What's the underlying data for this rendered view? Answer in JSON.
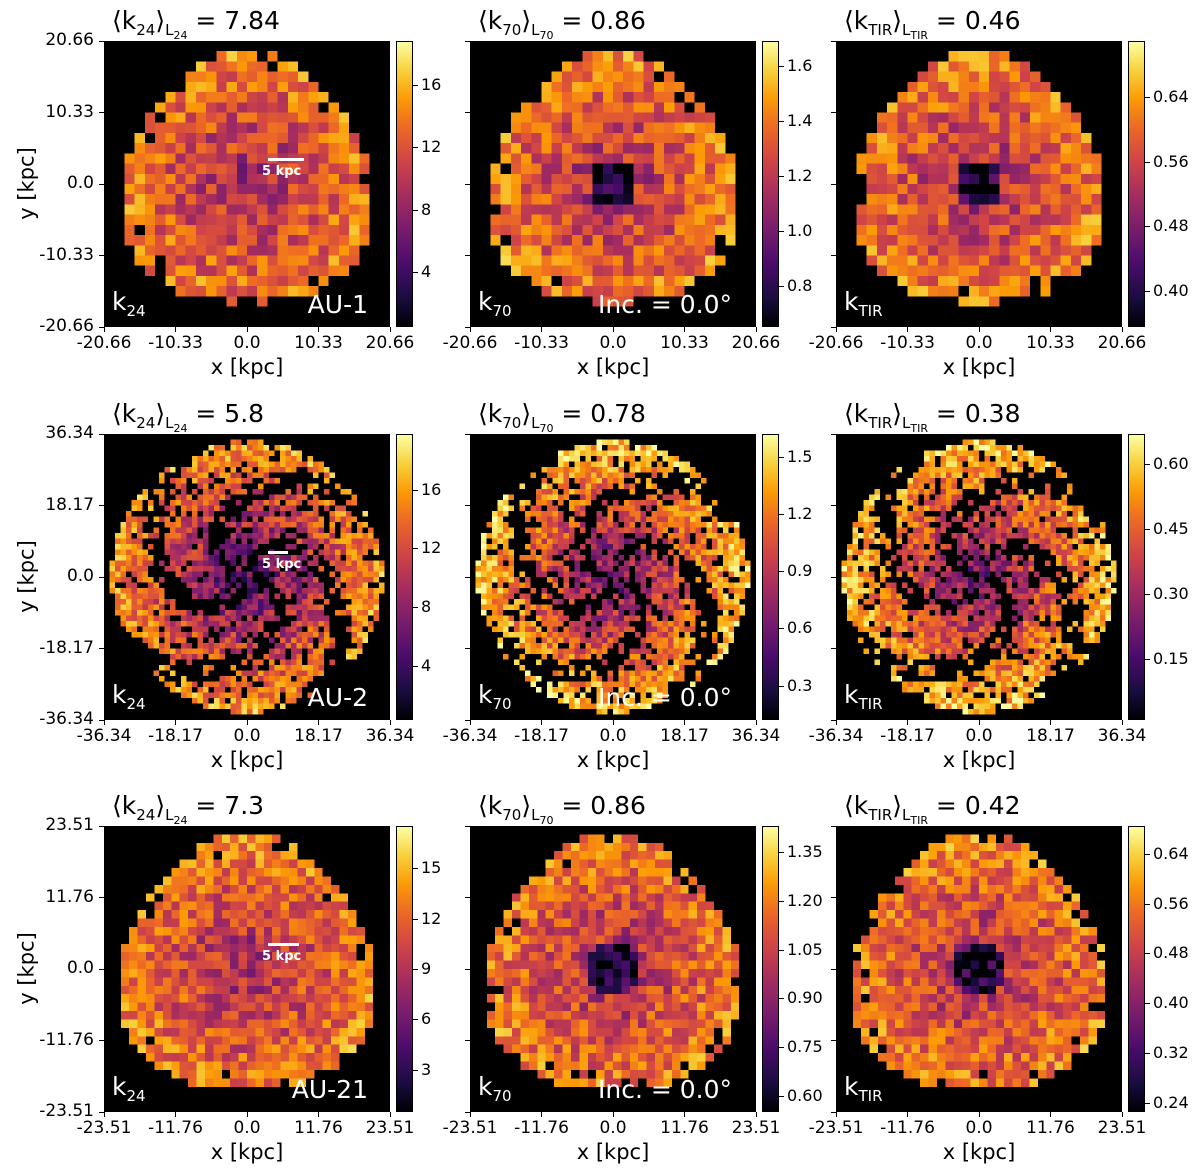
{
  "chart_data": {
    "type": "heatmap",
    "colormap": "inferno",
    "x_axis_label": "x [kpc]",
    "y_axis_label": "y [kpc]",
    "scale_bar_label": "5 kpc",
    "rows": [
      {
        "galaxy": "AU-1",
        "axis_ticks": [
          "-20.66",
          "-10.33",
          "0.0",
          "10.33",
          "20.66"
        ],
        "panels": [
          {
            "title_main": "⟨k",
            "title_sub": "24",
            "title_lum": "L",
            "title_lum_sub": "24",
            "value": "7.84",
            "corner_main": "k",
            "corner_sub": "24",
            "note": "AU-1",
            "colorbar": {
              "ticks": [
                "4",
                "8",
                "12",
                "16"
              ],
              "vmin": 0.5,
              "vmax": 18.8,
              "tick_values": [
                4,
                8,
                12,
                16
              ]
            }
          },
          {
            "title_main": "⟨k",
            "title_sub": "70",
            "title_lum": "L",
            "title_lum_sub": "70",
            "value": "0.86",
            "corner_main": "k",
            "corner_sub": "70",
            "note": "Inc. = 0.0°",
            "colorbar": {
              "ticks": [
                "0.8",
                "1.0",
                "1.2",
                "1.4",
                "1.6"
              ],
              "vmin": 0.65,
              "vmax": 1.69,
              "tick_values": [
                0.8,
                1.0,
                1.2,
                1.4,
                1.6
              ]
            }
          },
          {
            "title_main": "⟨k",
            "title_sub": "TIR",
            "title_lum": "L",
            "title_lum_sub": "TIR",
            "value": "0.46",
            "corner_main": "k",
            "corner_sub": "TIR",
            "note": "",
            "colorbar": {
              "ticks": [
                "0.40",
                "0.48",
                "0.56",
                "0.64"
              ],
              "vmin": 0.355,
              "vmax": 0.71,
              "tick_values": [
                0.4,
                0.48,
                0.56,
                0.64
              ]
            }
          }
        ]
      },
      {
        "galaxy": "AU-2",
        "axis_ticks": [
          "-36.34",
          "-18.17",
          "0.0",
          "18.17",
          "36.34"
        ],
        "panels": [
          {
            "title_main": "⟨k",
            "title_sub": "24",
            "title_lum": "L",
            "title_lum_sub": "24",
            "value": "5.8",
            "corner_main": "k",
            "corner_sub": "24",
            "note": "AU-2",
            "colorbar": {
              "ticks": [
                "4",
                "8",
                "12",
                "16"
              ],
              "vmin": 0.3,
              "vmax": 19.8,
              "tick_values": [
                4,
                8,
                12,
                16
              ]
            }
          },
          {
            "title_main": "⟨k",
            "title_sub": "70",
            "title_lum": "L",
            "title_lum_sub": "70",
            "value": "0.78",
            "corner_main": "k",
            "corner_sub": "70",
            "note": "Inc. = 0.0°",
            "colorbar": {
              "ticks": [
                "0.3",
                "0.6",
                "0.9",
                "1.2",
                "1.5"
              ],
              "vmin": 0.12,
              "vmax": 1.62,
              "tick_values": [
                0.3,
                0.6,
                0.9,
                1.2,
                1.5
              ]
            }
          },
          {
            "title_main": "⟨k",
            "title_sub": "TIR",
            "title_lum": "L",
            "title_lum_sub": "TIR",
            "value": "0.38",
            "corner_main": "k",
            "corner_sub": "TIR",
            "note": "",
            "colorbar": {
              "ticks": [
                "0.15",
                "0.30",
                "0.45",
                "0.60"
              ],
              "vmin": 0.01,
              "vmax": 0.67,
              "tick_values": [
                0.15,
                0.3,
                0.45,
                0.6
              ]
            }
          }
        ]
      },
      {
        "galaxy": "AU-21",
        "axis_ticks": [
          "-23.51",
          "-11.76",
          "0.0",
          "11.76",
          "23.51"
        ],
        "panels": [
          {
            "title_main": "⟨k",
            "title_sub": "24",
            "title_lum": "L",
            "title_lum_sub": "24",
            "value": "7.3",
            "corner_main": "k",
            "corner_sub": "24",
            "note": "AU-21",
            "colorbar": {
              "ticks": [
                "3",
                "6",
                "9",
                "12",
                "15"
              ],
              "vmin": 0.5,
              "vmax": 17.5,
              "tick_values": [
                3,
                6,
                9,
                12,
                15
              ]
            }
          },
          {
            "title_main": "⟨k",
            "title_sub": "70",
            "title_lum": "L",
            "title_lum_sub": "70",
            "value": "0.86",
            "corner_main": "k",
            "corner_sub": "70",
            "note": "Inc. = 0.0°",
            "colorbar": {
              "ticks": [
                "0.60",
                "0.75",
                "0.90",
                "1.05",
                "1.20",
                "1.35"
              ],
              "vmin": 0.55,
              "vmax": 1.43,
              "tick_values": [
                0.6,
                0.75,
                0.9,
                1.05,
                1.2,
                1.35
              ]
            }
          },
          {
            "title_main": "⟨k",
            "title_sub": "TIR",
            "title_lum": "L",
            "title_lum_sub": "TIR",
            "value": "0.42",
            "corner_main": "k",
            "corner_sub": "TIR",
            "note": "",
            "colorbar": {
              "ticks": [
                "0.24",
                "0.32",
                "0.40",
                "0.48",
                "0.56",
                "0.64"
              ],
              "vmin": 0.225,
              "vmax": 0.685,
              "tick_values": [
                0.24,
                0.32,
                0.4,
                0.48,
                0.56,
                0.64
              ]
            }
          }
        ]
      }
    ]
  }
}
